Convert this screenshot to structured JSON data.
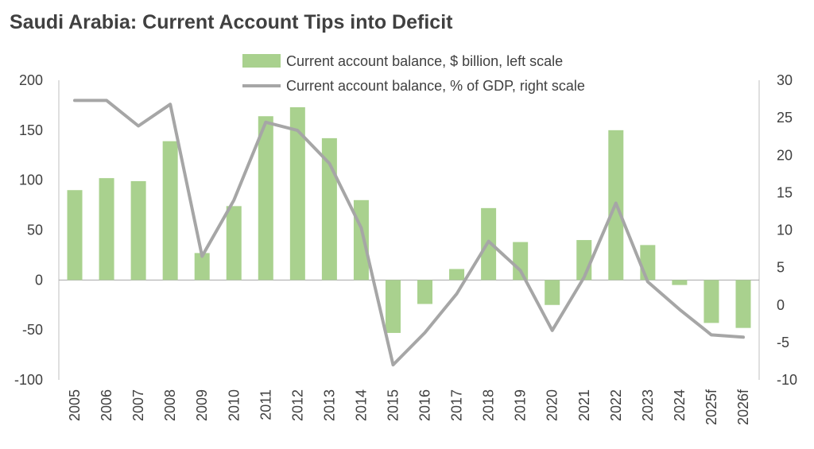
{
  "chart_data": {
    "type": "bar+line",
    "title": "Saudi Arabia: Current Account Tips into Deficit",
    "categories": [
      "2005",
      "2006",
      "2007",
      "2008",
      "2009",
      "2010",
      "2011",
      "2012",
      "2013",
      "2014",
      "2015",
      "2016",
      "2017",
      "2018",
      "2019",
      "2020",
      "2021",
      "2022",
      "2023",
      "2024",
      "2025f",
      "2026f"
    ],
    "series": [
      {
        "name": "Current account balance, $ billion, left scale",
        "type": "bar",
        "axis": "left",
        "color": "#a9d18e",
        "values": [
          90,
          102,
          99,
          139,
          27,
          74,
          164,
          173,
          142,
          80,
          -53,
          -24,
          11,
          72,
          38,
          -25,
          40,
          150,
          35,
          -5,
          -43,
          -48
        ]
      },
      {
        "name": "Current account balance, % of GDP, right scale",
        "type": "line",
        "axis": "right",
        "color": "#a6a6a6",
        "values": [
          27.3,
          27.3,
          23.9,
          26.8,
          6.5,
          14.0,
          24.4,
          23.3,
          18.9,
          10.3,
          -8.0,
          -3.7,
          1.5,
          8.5,
          4.6,
          -3.4,
          3.7,
          13.6,
          3.1,
          -0.6,
          -4.0,
          -4.3
        ]
      }
    ],
    "yleft": {
      "ylim": [
        -100,
        200
      ],
      "ticks": [
        200,
        150,
        100,
        50,
        0,
        -50,
        -100
      ]
    },
    "yright": {
      "ylim": [
        -10,
        30
      ],
      "ticks": [
        30,
        25,
        20,
        15,
        10,
        5,
        0,
        -5,
        -10
      ]
    },
    "legend_position": "top",
    "grid": false
  }
}
